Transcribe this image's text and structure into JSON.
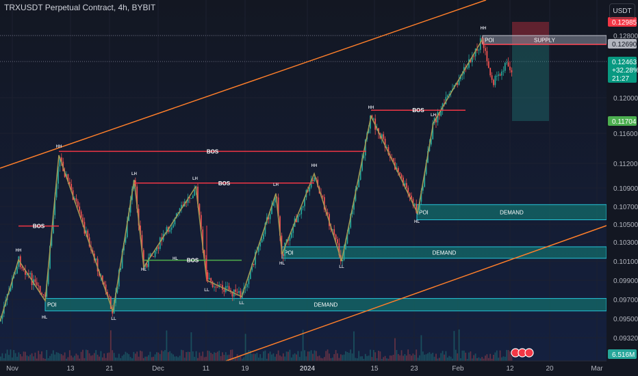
{
  "header": {
    "title": "TRXUSDT Perpetual Contract, 4h, BYBIT",
    "currency": "USDT"
  },
  "colors": {
    "bg": "#131722",
    "grid": "#1c2030",
    "structure": "#a79b54",
    "bos": "#f23645",
    "hl": "#4caf50",
    "channel": "#ff7f2a",
    "zone_fill": "#13706e",
    "zone_edge": "#26c6da",
    "supply_fill": "#8a8f9e",
    "up": "#26a69a",
    "down": "#ef5350"
  },
  "chart_data": {
    "type": "candlestick",
    "symbol": "TRXUSDT",
    "timeframe": "4h",
    "exchange": "BYBIT",
    "y_ticks": [
      "0.12800",
      "0.12000",
      "0.11600",
      "0.11200",
      "0.10900",
      "0.10700",
      "0.10500",
      "0.10300",
      "0.10100",
      "0.09900",
      "0.09700",
      "0.09500",
      "0.09320"
    ],
    "x_ticks": [
      "Nov",
      "13",
      "21",
      "Dec",
      "11",
      "19",
      "2024",
      "15",
      "23",
      "Feb",
      "12",
      "20",
      "Mar"
    ],
    "price_labels": [
      {
        "text": "0.12985",
        "color": "#f23645"
      },
      {
        "text": "0.12690",
        "color": "#b2b5be"
      },
      {
        "text": "0.11704",
        "color": "#4caf50"
      },
      {
        "text": "6.516M",
        "color": "#26a69a"
      }
    ],
    "current": {
      "price": "0.12463",
      "change": "+32.28%",
      "countdown": "21:27"
    },
    "structure_labels": [
      {
        "text": "HH",
        "price": 0.1055
      },
      {
        "text": "HL",
        "price": 0.0949
      },
      {
        "text": "HH",
        "price": 0.1141
      },
      {
        "text": "LL",
        "price": 0.0945
      },
      {
        "text": "LH",
        "price": 0.1096
      },
      {
        "text": "HL",
        "price": 0.0999
      },
      {
        "text": "LH",
        "price": 0.1093
      },
      {
        "text": "HL",
        "price": 0.0999
      },
      {
        "text": "LL",
        "price": 0.0983
      },
      {
        "text": "LL",
        "price": 0.0969
      },
      {
        "text": "LH",
        "price": 0.1089
      },
      {
        "text": "HL",
        "price": 0.1006
      },
      {
        "text": "HH",
        "price": 0.1124
      },
      {
        "text": "LL",
        "price": 0.1006
      },
      {
        "text": "HH",
        "price": 0.1204
      },
      {
        "text": "LH",
        "price": 0.1175
      },
      {
        "text": "HL",
        "price": 0.1055
      },
      {
        "text": "HH",
        "price": 0.1288
      }
    ],
    "bos_lines": [
      {
        "label": "BOS",
        "price": 0.1048,
        "color": "red"
      },
      {
        "label": "BOS",
        "price": 0.1136,
        "color": "red"
      },
      {
        "label": "BOS",
        "price": 0.1096,
        "color": "red"
      },
      {
        "label": "BOS",
        "price": 0.1011,
        "color": "green"
      },
      {
        "label": "BOS",
        "price": 0.1186,
        "color": "red"
      }
    ],
    "zones": [
      {
        "label": "DEMAND",
        "poi": "POI",
        "top": 0.1072,
        "bottom": 0.1055
      },
      {
        "label": "DEMAND",
        "poi": "POI",
        "top": 0.1025,
        "bottom": 0.1013
      },
      {
        "label": "DEMAND",
        "poi": "POI",
        "top": 0.0971,
        "bottom": 0.0958
      },
      {
        "label": "SUPPLY",
        "poi": "POI",
        "top": 0.128,
        "bottom": 0.1269
      }
    ]
  }
}
